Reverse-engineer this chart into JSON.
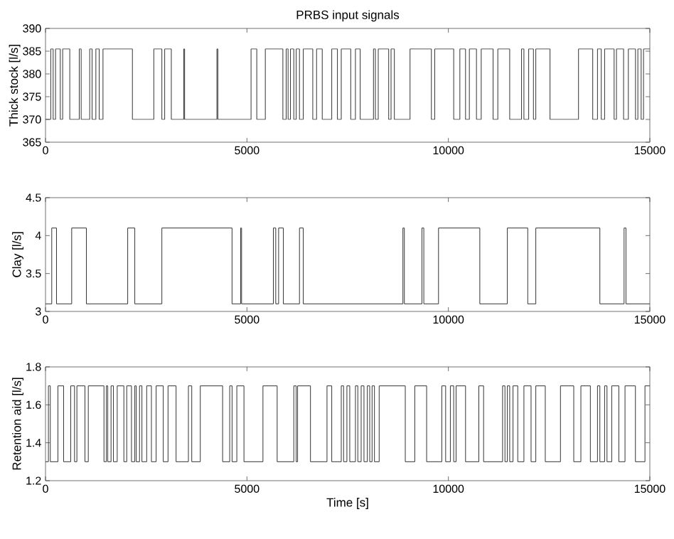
{
  "chart_data": [
    {
      "type": "step",
      "title": "PRBS input signals",
      "ylabel": "Thick stock [l/s]",
      "color": "#333333",
      "xlim": [
        0,
        15000
      ],
      "xticks": [
        0,
        5000,
        10000,
        15000
      ],
      "ylim": [
        365,
        390
      ],
      "yticks": [
        365,
        370,
        375,
        380,
        385,
        390
      ],
      "grid": false,
      "x": [
        0,
        131,
        190,
        249,
        367,
        426,
        602,
        838,
        885,
        1097,
        1156,
        1250,
        1333,
        1427,
        2157,
        2688,
        2888,
        2958,
        3123,
        3430,
        3453,
        4254,
        4278,
        5102,
        5244,
        5456,
        5892,
        5974,
        6021,
        6080,
        6163,
        6222,
        6304,
        6398,
        6634,
        6728,
        6869,
        7105,
        7246,
        7341,
        7576,
        7693,
        7811,
        8141,
        8188,
        8259,
        8518,
        8577,
        8659,
        9048,
        9578,
        9661,
        10132,
        10285,
        10426,
        10521,
        10697,
        10815,
        11110,
        11227,
        11522,
        11816,
        11875,
        11993,
        12111,
        12170,
        12523,
        13230,
        13583,
        13701,
        13795,
        13878,
        14114,
        14172,
        14349,
        14467,
        14644,
        14703,
        14785,
        14844,
        15000
      ],
      "values": [
        370,
        385.5,
        370,
        385.5,
        370,
        385.5,
        370,
        385.5,
        370,
        385.5,
        370,
        385.5,
        370,
        385.5,
        370,
        385.5,
        370,
        385.5,
        370,
        385.5,
        370,
        385.5,
        370,
        385.5,
        370,
        385.5,
        370,
        385.5,
        370,
        385.5,
        370,
        385.5,
        370,
        385.5,
        370,
        385.5,
        370,
        385.5,
        370,
        385.5,
        370,
        385.5,
        370,
        385.5,
        370,
        385.5,
        370,
        385.5,
        370,
        385.5,
        370,
        385.5,
        370,
        385.5,
        370,
        385.5,
        370,
        385.5,
        370,
        385.5,
        370,
        385.5,
        370,
        385.5,
        370,
        385.5,
        370,
        385.5,
        370,
        385.5,
        370,
        385.5,
        370,
        385.5,
        370,
        385.5,
        370,
        385.5,
        370,
        385.5,
        385.5
      ]
    },
    {
      "type": "step",
      "ylabel": "Clay [l/s]",
      "color": "#333333",
      "xlim": [
        0,
        15000
      ],
      "xticks": [
        0,
        5000,
        10000,
        15000
      ],
      "ylim": [
        3,
        4.5
      ],
      "yticks": [
        3,
        3.5,
        4,
        4.5
      ],
      "grid": false,
      "x": [
        0,
        155,
        273,
        650,
        1015,
        2040,
        2216,
        2888,
        4630,
        4843,
        4867,
        5656,
        5715,
        5786,
        5904,
        6304,
        6398,
        8871,
        8907,
        9343,
        9390,
        9755,
        10780,
        11463,
        11970,
        12170,
        13760,
        14361,
        14408,
        15000
      ],
      "values": [
        3.1,
        4.1,
        3.1,
        4.1,
        3.1,
        4.1,
        3.1,
        4.1,
        3.1,
        4.1,
        3.1,
        4.1,
        3.1,
        4.1,
        3.1,
        4.1,
        3.1,
        4.1,
        3.1,
        4.1,
        3.1,
        4.1,
        3.1,
        4.1,
        3.1,
        4.1,
        3.1,
        4.1,
        3.1,
        3.1
      ]
    },
    {
      "type": "step",
      "ylabel": "Retention aid [l/s]",
      "xlabel": "Time [s]",
      "color": "#333333",
      "xlim": [
        0,
        15000
      ],
      "xticks": [
        0,
        5000,
        10000,
        15000
      ],
      "ylim": [
        1.2,
        1.8
      ],
      "yticks": [
        1.2,
        1.4,
        1.6,
        1.8
      ],
      "grid": false,
      "x": [
        0,
        72,
        119,
        308,
        449,
        626,
        720,
        779,
        979,
        1062,
        1451,
        1510,
        1545,
        1627,
        1686,
        1780,
        1945,
        2016,
        2134,
        2216,
        2252,
        2334,
        2393,
        2511,
        2629,
        2746,
        2923,
        3041,
        3241,
        3547,
        3630,
        3842,
        4396,
        4572,
        4631,
        4749,
        4926,
        5397,
        5750,
        6163,
        6222,
        6257,
        6577,
        6987,
        7105,
        7341,
        7399,
        7481,
        7552,
        7693,
        7752,
        7835,
        7905,
        7988,
        8047,
        8106,
        8165,
        8282,
        8930,
        9166,
        9460,
        9837,
        9932,
        10049,
        10132,
        10191,
        10426,
        10756,
        10874,
        11345,
        11404,
        11463,
        11522,
        11604,
        11722,
        11875,
        12052,
        12170,
        12405,
        12782,
        13112,
        13289,
        13524,
        13701,
        13760,
        13878,
        13937,
        14055,
        14231,
        14384,
        14643,
        14879,
        15000
      ],
      "values": [
        1.3,
        1.7,
        1.3,
        1.7,
        1.3,
        1.7,
        1.3,
        1.7,
        1.3,
        1.7,
        1.3,
        1.7,
        1.3,
        1.7,
        1.3,
        1.7,
        1.3,
        1.7,
        1.3,
        1.7,
        1.3,
        1.7,
        1.3,
        1.7,
        1.3,
        1.7,
        1.3,
        1.7,
        1.3,
        1.7,
        1.3,
        1.7,
        1.3,
        1.7,
        1.3,
        1.7,
        1.3,
        1.7,
        1.3,
        1.7,
        1.3,
        1.7,
        1.3,
        1.7,
        1.3,
        1.7,
        1.3,
        1.7,
        1.3,
        1.7,
        1.3,
        1.7,
        1.3,
        1.7,
        1.3,
        1.7,
        1.3,
        1.7,
        1.3,
        1.7,
        1.3,
        1.7,
        1.3,
        1.7,
        1.3,
        1.7,
        1.3,
        1.7,
        1.3,
        1.7,
        1.3,
        1.7,
        1.3,
        1.7,
        1.3,
        1.7,
        1.3,
        1.7,
        1.3,
        1.7,
        1.3,
        1.7,
        1.3,
        1.7,
        1.3,
        1.7,
        1.3,
        1.7,
        1.3,
        1.7,
        1.3,
        1.7,
        1.7
      ]
    }
  ]
}
